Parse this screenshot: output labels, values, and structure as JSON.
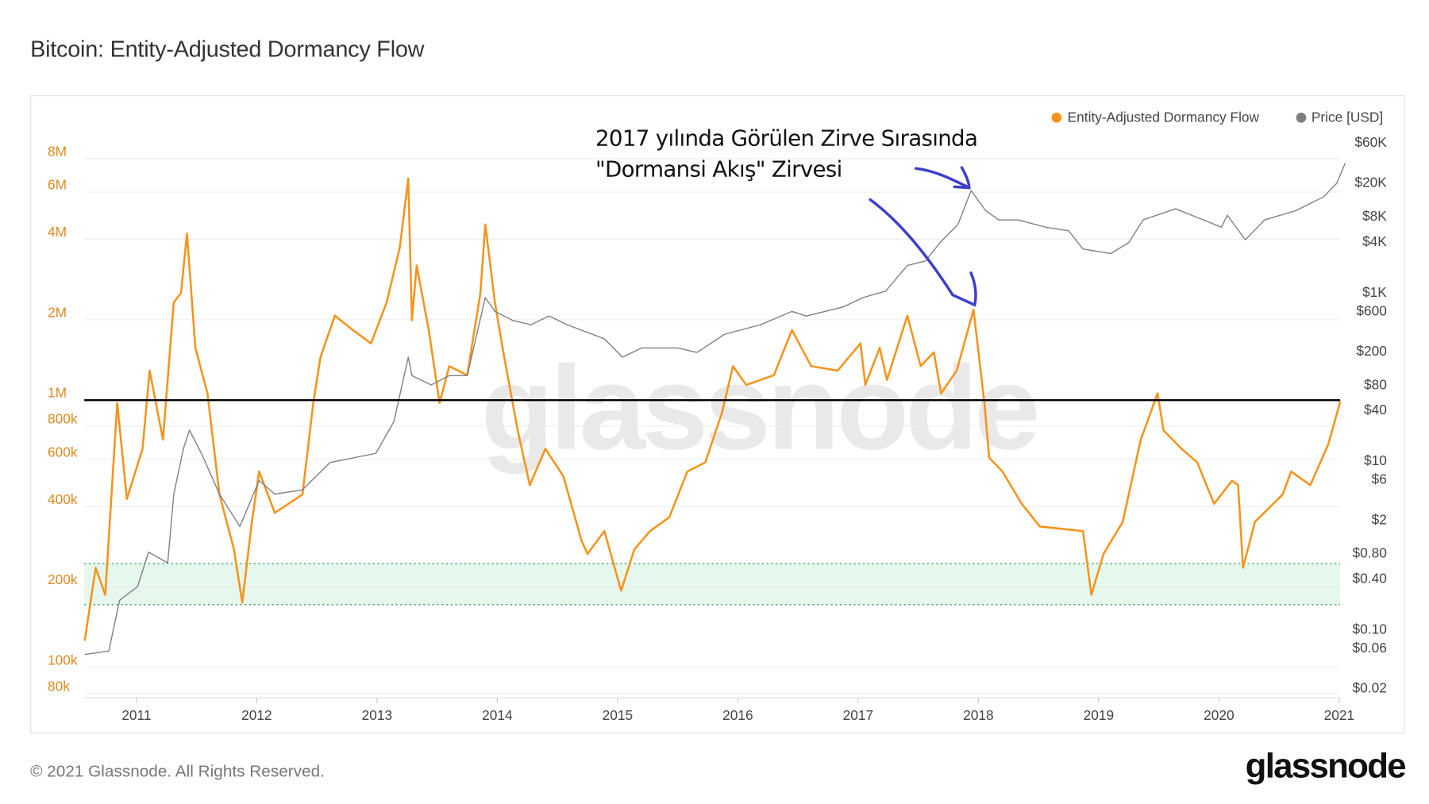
{
  "header": {
    "title": "Bitcoin: Entity-Adjusted Dormancy Flow"
  },
  "annotation": {
    "line1": "2017 yılında Görülen Zirve Sırasında",
    "line2": "\"Dormansi Akış\" Zirvesi",
    "arrow_color": "#3b3fc9"
  },
  "watermark": "glassnode",
  "footer": {
    "copyright": "© 2021 Glassnode. All Rights Reserved.",
    "logo": "glassnode"
  },
  "chart_data": {
    "type": "line",
    "title": "Bitcoin: Entity-Adjusted Dormancy Flow",
    "legend_position": "top-right",
    "x_ticks": [
      "2011",
      "2012",
      "2013",
      "2014",
      "2015",
      "2016",
      "2017",
      "2018",
      "2019",
      "2020",
      "2021"
    ],
    "xlim": [
      2010.57,
      2021.01
    ],
    "left_axis": {
      "scale": "log",
      "ylim": [
        70000,
        9000000
      ],
      "ticks": [
        {
          "v": 8000000,
          "label": "8M"
        },
        {
          "v": 6000000,
          "label": "6M"
        },
        {
          "v": 4000000,
          "label": "4M"
        },
        {
          "v": 2000000,
          "label": "2M"
        },
        {
          "v": 1000000,
          "label": "1M"
        },
        {
          "v": 800000,
          "label": "800k"
        },
        {
          "v": 600000,
          "label": "600k"
        },
        {
          "v": 400000,
          "label": "400k"
        },
        {
          "v": 200000,
          "label": "200k"
        },
        {
          "v": 100000,
          "label": "100k"
        },
        {
          "v": 80000,
          "label": "80k"
        }
      ]
    },
    "right_axis": {
      "scale": "log",
      "ticks": [
        {
          "v": 60000,
          "label": "$60K"
        },
        {
          "v": 20000,
          "label": "$20K"
        },
        {
          "v": 8000,
          "label": "$8K"
        },
        {
          "v": 4000,
          "label": "$4K"
        },
        {
          "v": 1000,
          "label": "$1K"
        },
        {
          "v": 600,
          "label": "$600"
        },
        {
          "v": 200,
          "label": "$200"
        },
        {
          "v": 80,
          "label": "$80"
        },
        {
          "v": 40,
          "label": "$40"
        },
        {
          "v": 10,
          "label": "$10"
        },
        {
          "v": 6,
          "label": "$6"
        },
        {
          "v": 2,
          "label": "$2"
        },
        {
          "v": 0.8,
          "label": "$0.80"
        },
        {
          "v": 0.4,
          "label": "$0.40"
        },
        {
          "v": 0.1,
          "label": "$0.10"
        },
        {
          "v": 0.06,
          "label": "$0.06"
        },
        {
          "v": 0.02,
          "label": "$0.02"
        }
      ]
    },
    "reference_line": {
      "value": 1000000,
      "color": "#000000"
    },
    "band": {
      "from": 172000,
      "to": 245000,
      "color": "#e6f7ee"
    },
    "series": [
      {
        "name": "Entity-Adjusted Dormancy Flow",
        "axis": "left",
        "color": "#f7931a",
        "x": [
          2010.57,
          2010.66,
          2010.74,
          2010.84,
          2010.92,
          2011.05,
          2011.11,
          2011.22,
          2011.31,
          2011.37,
          2011.42,
          2011.49,
          2011.59,
          2011.69,
          2011.81,
          2011.88,
          2011.96,
          2012.02,
          2012.15,
          2012.38,
          2012.47,
          2012.53,
          2012.65,
          2012.8,
          2012.95,
          2013.08,
          2013.19,
          2013.26,
          2013.29,
          2013.33,
          2013.43,
          2013.52,
          2013.6,
          2013.75,
          2013.86,
          2013.9,
          2013.98,
          2014.05,
          2014.17,
          2014.27,
          2014.4,
          2014.55,
          2014.7,
          2014.75,
          2014.89,
          2015.03,
          2015.14,
          2015.27,
          2015.43,
          2015.58,
          2015.73,
          2015.87,
          2015.96,
          2016.07,
          2016.3,
          2016.45,
          2016.61,
          2016.83,
          2017.02,
          2017.06,
          2017.18,
          2017.24,
          2017.41,
          2017.52,
          2017.63,
          2017.69,
          2017.82,
          2017.96,
          2018.05,
          2018.09,
          2018.2,
          2018.36,
          2018.51,
          2018.7,
          2018.87,
          2018.94,
          2019.04,
          2019.2,
          2019.35,
          2019.49,
          2019.54,
          2019.69,
          2019.82,
          2019.96,
          2020.11,
          2020.16,
          2020.2,
          2020.3,
          2020.53,
          2020.6,
          2020.76,
          2020.91,
          2021.01
        ],
        "values": [
          126000,
          236000,
          187000,
          976000,
          427000,
          658000,
          1290000,
          712000,
          2320000,
          2520000,
          4200000,
          1570000,
          1060000,
          444000,
          277000,
          175000,
          351000,
          541000,
          379000,
          444000,
          976000,
          1450000,
          2070000,
          1830000,
          1630000,
          2320000,
          3730000,
          6740000,
          1990000,
          3190000,
          1830000,
          976000,
          1340000,
          1240000,
          2520000,
          4540000,
          2320000,
          1510000,
          771000,
          481000,
          658000,
          519000,
          299000,
          266000,
          324000,
          194000,
          277000,
          324000,
          365000,
          541000,
          585000,
          903000,
          1340000,
          1140000,
          1240000,
          1830000,
          1340000,
          1290000,
          1630000,
          1140000,
          1570000,
          1190000,
          2070000,
          1340000,
          1510000,
          1060000,
          1290000,
          2180000,
          976000,
          609000,
          541000,
          410000,
          337000,
          330000,
          324000,
          187000,
          266000,
          351000,
          712000,
          1060000,
          771000,
          658000,
          585000,
          410000,
          500000,
          481000,
          236000,
          351000,
          444000,
          541000,
          481000,
          685000,
          992000
        ]
      },
      {
        "name": "Price [USD]",
        "axis": "right",
        "color": "#7f7f7f",
        "x": [
          2010.57,
          2010.77,
          2010.82,
          2010.86,
          2011.01,
          2011.1,
          2011.26,
          2011.31,
          2011.39,
          2011.44,
          2011.54,
          2011.69,
          2011.86,
          2012.02,
          2012.15,
          2012.38,
          2012.61,
          2012.99,
          2013.14,
          2013.26,
          2013.29,
          2013.45,
          2013.6,
          2013.75,
          2013.9,
          2013.98,
          2014.13,
          2014.28,
          2014.43,
          2014.58,
          2014.89,
          2015.04,
          2015.2,
          2015.5,
          2015.66,
          2015.89,
          2016.19,
          2016.45,
          2016.57,
          2016.88,
          2017.04,
          2017.23,
          2017.41,
          2017.56,
          2017.68,
          2017.83,
          2017.94,
          2018.06,
          2018.17,
          2018.33,
          2018.56,
          2018.75,
          2018.87,
          2019.1,
          2019.25,
          2019.37,
          2019.64,
          2019.87,
          2020.02,
          2020.07,
          2020.22,
          2020.38,
          2020.64,
          2020.87,
          2020.98,
          2021.05
        ],
        "values": [
          0.05,
          0.055,
          0.12,
          0.22,
          0.32,
          0.82,
          0.61,
          4.0,
          13.8,
          23,
          12.2,
          4,
          1.65,
          5.8,
          4,
          4.5,
          9.5,
          12.2,
          29,
          169,
          102,
          79,
          102,
          102,
          860,
          590,
          460,
          410,
          520,
          410,
          279,
          169,
          217,
          217,
          192,
          316,
          410,
          590,
          520,
          670,
          860,
          1030,
          2070,
          2340,
          3860,
          6340,
          16100,
          9270,
          7200,
          7200,
          5900,
          5350,
          3250,
          2870,
          3860,
          7200,
          9750,
          7200,
          5900,
          8180,
          4170,
          7200,
          9270,
          13500,
          19600,
          34000
        ]
      }
    ]
  }
}
